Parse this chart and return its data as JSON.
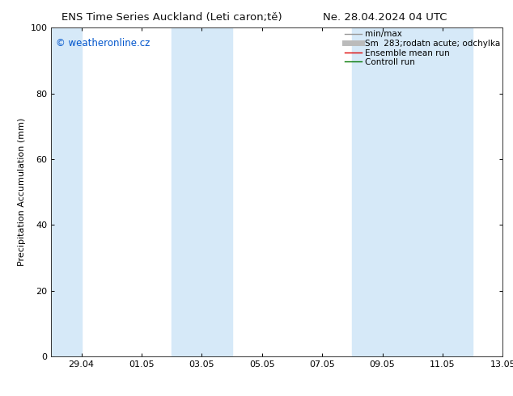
{
  "title_left": "ENS Time Series Auckland (Leti caron;tě)",
  "title_right": "Ne. 28.04.2024 04 UTC",
  "ylabel": "Precipitation Accumulation (mm)",
  "watermark": "© weatheronline.cz",
  "watermark_color": "#0055cc",
  "ylim": [
    0,
    100
  ],
  "yticks": [
    0,
    20,
    40,
    60,
    80,
    100
  ],
  "xtick_labels": [
    "29.04",
    "01.05",
    "03.05",
    "05.05",
    "07.05",
    "09.05",
    "11.05",
    "13.05"
  ],
  "background_color": "#ffffff",
  "plot_bg_color": "#ffffff",
  "band_color": "#d6e9f8",
  "shaded_bands": [
    {
      "x_start": 0.0,
      "x_end": 1.0
    },
    {
      "x_start": 4.0,
      "x_end": 6.0
    },
    {
      "x_start": 10.0,
      "x_end": 14.0
    }
  ],
  "x_min": 0,
  "x_max": 15,
  "xtick_positions": [
    1,
    3,
    5,
    7,
    9,
    11,
    13,
    15
  ],
  "legend_items": [
    {
      "label": "min/max",
      "color": "#999999",
      "linewidth": 1.0
    },
    {
      "label": "Sm  283;rodatn acute; odchylka",
      "color": "#bbbbbb",
      "linewidth": 5
    },
    {
      "label": "Ensemble mean run",
      "color": "#dd0000",
      "linewidth": 1.0
    },
    {
      "label": "Controll run",
      "color": "#007700",
      "linewidth": 1.0
    }
  ],
  "font_size_title": 9.5,
  "font_size_legend": 7.5,
  "font_size_axis": 8,
  "font_size_watermark": 8.5
}
